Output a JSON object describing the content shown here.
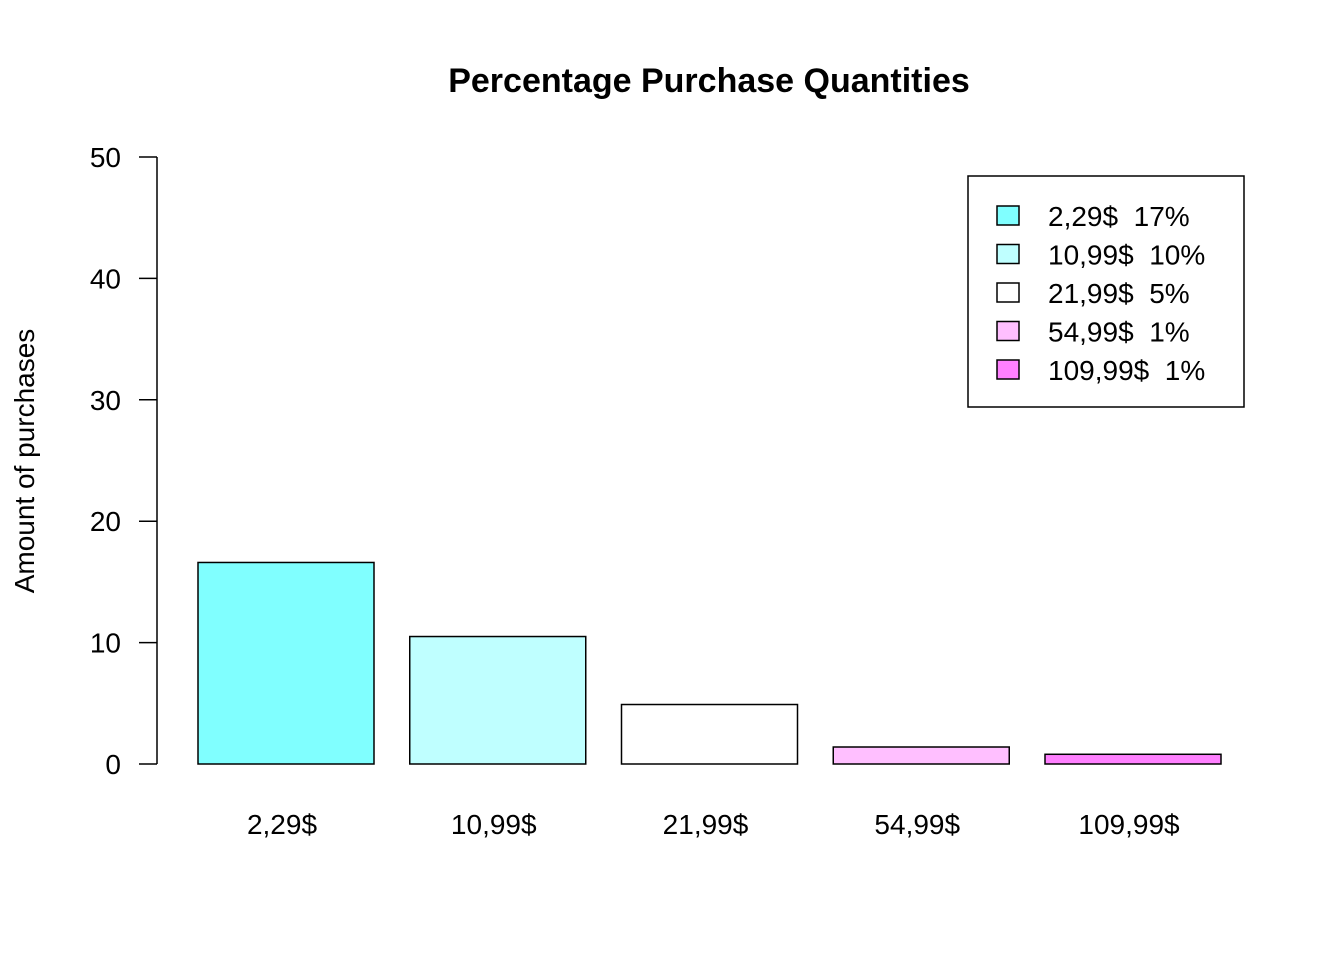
{
  "chart_data": {
    "type": "bar",
    "title": "Percentage Purchase Quantities",
    "xlabel": "",
    "ylabel": "Amount of purchases",
    "categories": [
      "2,29$",
      "10,99$",
      "21,99$",
      "54,99$",
      "109,99$"
    ],
    "values": [
      16.6,
      10.5,
      4.9,
      1.4,
      0.8
    ],
    "colors": [
      "#80FFFF",
      "#BFFFFF",
      "#FFFFFF",
      "#FFBFFF",
      "#FF80FF"
    ],
    "ylim": [
      0,
      50
    ],
    "yticks": [
      0,
      10,
      20,
      30,
      40,
      50
    ],
    "grid": false,
    "legend": {
      "position": "top-right",
      "entries": [
        "2,29$  17%",
        "10,99$  10%",
        "21,99$  5%",
        "54,99$  1%",
        "109,99$  1%"
      ]
    }
  }
}
